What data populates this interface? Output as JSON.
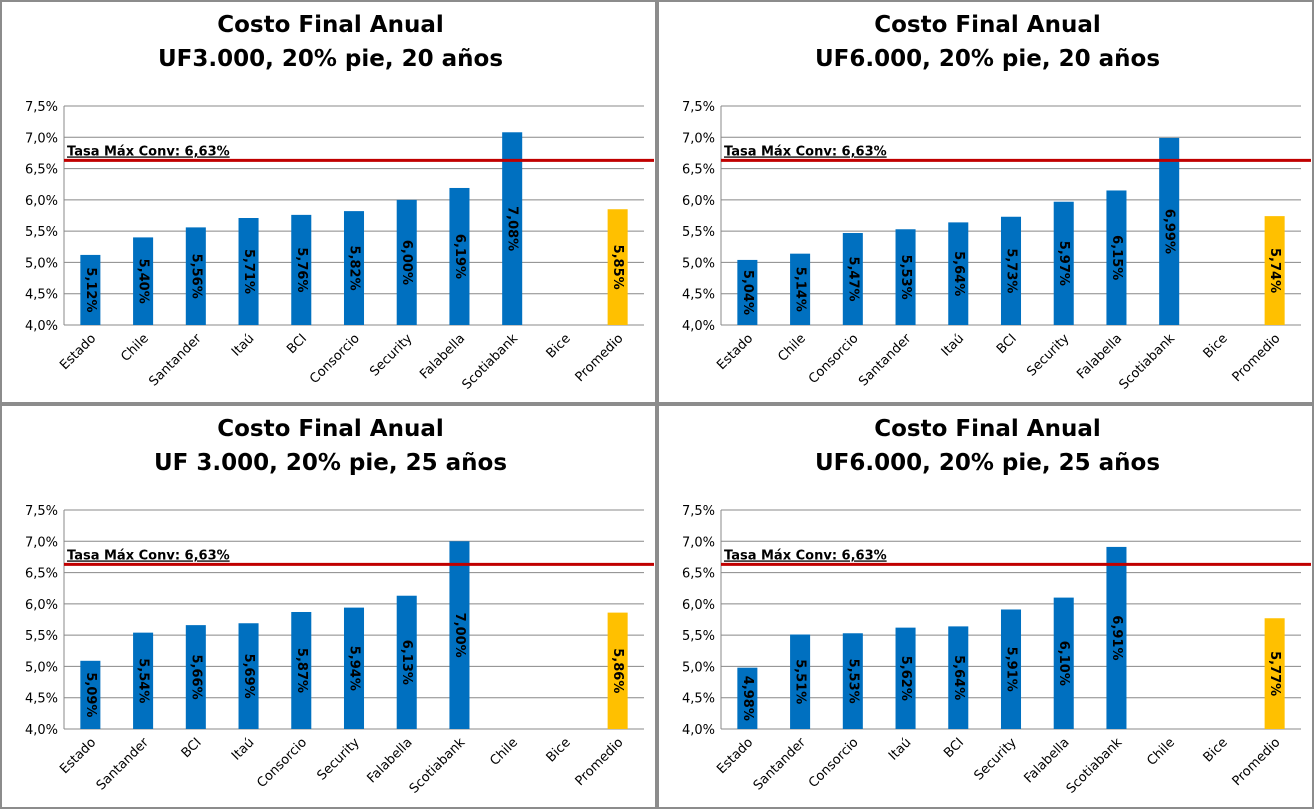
{
  "chart_data": [
    {
      "type": "bar",
      "title": "Costo Final Anual",
      "subtitle": "UF3.000, 20% pie, 20 años",
      "categories": [
        "Estado",
        "Chile",
        "Santander",
        "Itaú",
        "BCI",
        "Consorcio",
        "Security",
        "Falabella",
        "Scotiabank",
        "Bice",
        "Promedio"
      ],
      "values": [
        5.12,
        5.4,
        5.56,
        5.71,
        5.76,
        5.82,
        6.0,
        6.19,
        7.08,
        null,
        5.85
      ],
      "value_labels": [
        "5,12%",
        "5,40%",
        "5,56%",
        "5,71%",
        "5,76%",
        "5,82%",
        "6,00%",
        "6,19%",
        "7,08%",
        null,
        "5,85%"
      ],
      "colors": [
        "#0070c0",
        "#0070c0",
        "#0070c0",
        "#0070c0",
        "#0070c0",
        "#0070c0",
        "#0070c0",
        "#0070c0",
        "#0070c0",
        "#0070c0",
        "#ffc000"
      ],
      "ylim": [
        4.0,
        7.5
      ],
      "yticks": [
        {
          "value": 4.0,
          "label": "4,0%"
        },
        {
          "value": 4.5,
          "label": "4,5%"
        },
        {
          "value": 5.0,
          "label": "5,0%"
        },
        {
          "value": 5.5,
          "label": "5,5%"
        },
        {
          "value": 6.0,
          "label": "6,0%"
        },
        {
          "value": 6.5,
          "label": "6,5%"
        },
        {
          "value": 7.0,
          "label": "7,0%"
        },
        {
          "value": 7.5,
          "label": "7,5%"
        }
      ],
      "grid": true,
      "reference_line": {
        "value": 6.63,
        "label": "Tasa Máx Conv: 6,63%",
        "color": "#c00000"
      }
    },
    {
      "type": "bar",
      "title": "Costo Final Anual",
      "subtitle": "UF6.000, 20% pie, 20 años",
      "categories": [
        "Estado",
        "Chile",
        "Consorcio",
        "Santander",
        "Itaú",
        "BCI",
        "Security",
        "Falabella",
        "Scotiabank",
        "Bice",
        "Promedio"
      ],
      "values": [
        5.04,
        5.14,
        5.47,
        5.53,
        5.64,
        5.73,
        5.97,
        6.15,
        6.99,
        null,
        5.74
      ],
      "value_labels": [
        "5,04%",
        "5,14%",
        "5,47%",
        "5,53%",
        "5,64%",
        "5,73%",
        "5,97%",
        "6,15%",
        "6,99%",
        null,
        "5,74%"
      ],
      "colors": [
        "#0070c0",
        "#0070c0",
        "#0070c0",
        "#0070c0",
        "#0070c0",
        "#0070c0",
        "#0070c0",
        "#0070c0",
        "#0070c0",
        "#0070c0",
        "#ffc000"
      ],
      "ylim": [
        4.0,
        7.5
      ],
      "yticks": [
        {
          "value": 4.0,
          "label": "4,0%"
        },
        {
          "value": 4.5,
          "label": "4,5%"
        },
        {
          "value": 5.0,
          "label": "5,0%"
        },
        {
          "value": 5.5,
          "label": "5,5%"
        },
        {
          "value": 6.0,
          "label": "6,0%"
        },
        {
          "value": 6.5,
          "label": "6,5%"
        },
        {
          "value": 7.0,
          "label": "7,0%"
        },
        {
          "value": 7.5,
          "label": "7,5%"
        }
      ],
      "grid": true,
      "reference_line": {
        "value": 6.63,
        "label": "Tasa Máx Conv: 6,63%",
        "color": "#c00000"
      }
    },
    {
      "type": "bar",
      "title": "Costo Final Anual",
      "subtitle": "UF 3.000, 20% pie, 25 años",
      "categories": [
        "Estado",
        "Santander",
        "BCI",
        "Itaú",
        "Consorcio",
        "Security",
        "Falabella",
        "Scotiabank",
        "Chile",
        "Bice",
        "Promedio"
      ],
      "values": [
        5.09,
        5.54,
        5.66,
        5.69,
        5.87,
        5.94,
        6.13,
        7.0,
        null,
        null,
        5.86
      ],
      "value_labels": [
        "5,09%",
        "5,54%",
        "5,66%",
        "5,69%",
        "5,87%",
        "5,94%",
        "6,13%",
        "7,00%",
        null,
        null,
        "5,86%"
      ],
      "colors": [
        "#0070c0",
        "#0070c0",
        "#0070c0",
        "#0070c0",
        "#0070c0",
        "#0070c0",
        "#0070c0",
        "#0070c0",
        "#0070c0",
        "#0070c0",
        "#ffc000"
      ],
      "ylim": [
        4.0,
        7.5
      ],
      "yticks": [
        {
          "value": 4.0,
          "label": "4,0%"
        },
        {
          "value": 4.5,
          "label": "4,5%"
        },
        {
          "value": 5.0,
          "label": "5,0%"
        },
        {
          "value": 5.5,
          "label": "5,5%"
        },
        {
          "value": 6.0,
          "label": "6,0%"
        },
        {
          "value": 6.5,
          "label": "6,5%"
        },
        {
          "value": 7.0,
          "label": "7,0%"
        },
        {
          "value": 7.5,
          "label": "7,5%"
        }
      ],
      "grid": true,
      "reference_line": {
        "value": 6.63,
        "label": "Tasa Máx Conv: 6,63%",
        "color": "#c00000"
      }
    },
    {
      "type": "bar",
      "title": "Costo Final Anual",
      "subtitle": "UF6.000, 20% pie, 25 años",
      "categories": [
        "Estado",
        "Santander",
        "Consorcio",
        "Itaú",
        "BCI",
        "Security",
        "Falabella",
        "Scotiabank",
        "Chile",
        "Bice",
        "Promedio"
      ],
      "values": [
        4.98,
        5.51,
        5.53,
        5.62,
        5.64,
        5.91,
        6.1,
        6.91,
        null,
        null,
        5.77
      ],
      "value_labels": [
        "4,98%",
        "5,51%",
        "5,53%",
        "5,62%",
        "5,64%",
        "5,91%",
        "6,10%",
        "6,91%",
        null,
        null,
        "5,77%"
      ],
      "colors": [
        "#0070c0",
        "#0070c0",
        "#0070c0",
        "#0070c0",
        "#0070c0",
        "#0070c0",
        "#0070c0",
        "#0070c0",
        "#0070c0",
        "#0070c0",
        "#ffc000"
      ],
      "ylim": [
        4.0,
        7.5
      ],
      "yticks": [
        {
          "value": 4.0,
          "label": "4,0%"
        },
        {
          "value": 4.5,
          "label": "4,5%"
        },
        {
          "value": 5.0,
          "label": "5,0%"
        },
        {
          "value": 5.5,
          "label": "5,5%"
        },
        {
          "value": 6.0,
          "label": "6,0%"
        },
        {
          "value": 6.5,
          "label": "6,5%"
        },
        {
          "value": 7.0,
          "label": "7,0%"
        },
        {
          "value": 7.5,
          "label": "7,5%"
        }
      ],
      "grid": true,
      "reference_line": {
        "value": 6.63,
        "label": "Tasa Máx Conv: 6,63%",
        "color": "#c00000"
      }
    }
  ]
}
